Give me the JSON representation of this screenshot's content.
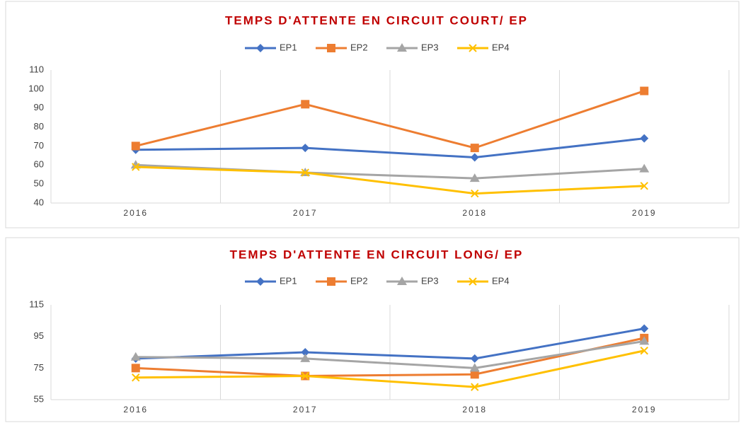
{
  "chart_data": [
    {
      "type": "line",
      "title": "TEMPS D'ATTENTE EN CIRCUIT COURT/ EP",
      "categories": [
        "2016",
        "2017",
        "2018",
        "2019"
      ],
      "series": [
        {
          "name": "EP1",
          "color": "#4472c4",
          "marker": "diamond",
          "values": [
            68,
            69,
            64,
            74
          ]
        },
        {
          "name": "EP2",
          "color": "#ed7d31",
          "marker": "square",
          "values": [
            70,
            92,
            69,
            99
          ]
        },
        {
          "name": "EP3",
          "color": "#a5a5a5",
          "marker": "triangle",
          "values": [
            60,
            56,
            53,
            58
          ]
        },
        {
          "name": "EP4",
          "color": "#ffc000",
          "marker": "x",
          "values": [
            59,
            56,
            45,
            49
          ]
        }
      ],
      "ylim": [
        40,
        110
      ],
      "yticks": [
        40,
        50,
        60,
        70,
        80,
        90,
        100,
        110
      ],
      "grid": "x",
      "legend": "top"
    },
    {
      "type": "line",
      "title": "TEMPS D'ATTENTE EN CIRCUIT LONG/ EP",
      "categories": [
        "2016",
        "2017",
        "2018",
        "2019"
      ],
      "series": [
        {
          "name": "EP1",
          "color": "#4472c4",
          "marker": "diamond",
          "values": [
            81,
            85,
            81,
            100
          ]
        },
        {
          "name": "EP2",
          "color": "#ed7d31",
          "marker": "square",
          "values": [
            75,
            70,
            71,
            94
          ]
        },
        {
          "name": "EP3",
          "color": "#a5a5a5",
          "marker": "triangle",
          "values": [
            82,
            81,
            75,
            92
          ]
        },
        {
          "name": "EP4",
          "color": "#ffc000",
          "marker": "x",
          "values": [
            69,
            70,
            63,
            86
          ]
        }
      ],
      "ylim": [
        55,
        115
      ],
      "yticks": [
        55,
        75,
        95,
        115
      ],
      "grid": "x",
      "legend": "top"
    }
  ]
}
